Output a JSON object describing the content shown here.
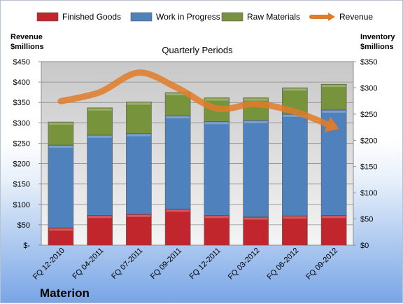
{
  "company": "Materion",
  "chart_data": {
    "type": "bar",
    "stacked": true,
    "title": "Quarterly Periods",
    "categories": [
      "FQ 12-2010",
      "FQ 04-2011",
      "FQ 07-2011",
      "FQ 09-2011",
      "FQ 12-2011",
      "FQ 03-2012",
      "FQ 06-2012",
      "FQ 09-2012"
    ],
    "left_axis": {
      "label_line1": "Revenue",
      "label_line2": "$millions",
      "ylim": [
        0,
        450
      ],
      "ticks": [
        0,
        50,
        100,
        150,
        200,
        250,
        300,
        350,
        400,
        450
      ],
      "tick_labels": [
        "$-",
        "$50",
        "$100",
        "$150",
        "$200",
        "$250",
        "$300",
        "$350",
        "$400",
        "$450"
      ]
    },
    "right_axis": {
      "label_line1": "Inventory",
      "label_line2": "$millions",
      "ylim": [
        0,
        350
      ],
      "ticks": [
        0,
        50,
        100,
        150,
        200,
        250,
        300,
        350
      ],
      "tick_labels": [
        "$0",
        "$50",
        "$100",
        "$150",
        "$200",
        "$250",
        "$300",
        "$350"
      ]
    },
    "series": [
      {
        "name": "Finished Goods",
        "axis": "right",
        "color": "#c0262b",
        "values": [
          33,
          57,
          59,
          69,
          57,
          54,
          56,
          57
        ]
      },
      {
        "name": "Work in Progress",
        "axis": "right",
        "color": "#4f81bd",
        "values": [
          158,
          153,
          154,
          178,
          179,
          184,
          194,
          201
        ]
      },
      {
        "name": "Raw Materials",
        "axis": "right",
        "color": "#77933c",
        "values": [
          44,
          52,
          60,
          44,
          45,
          43,
          50,
          49
        ]
      },
      {
        "name": "Revenue",
        "axis": "left",
        "type": "line",
        "color": "#e07b28",
        "values": [
          353,
          375,
          423,
          385,
          335,
          346,
          327,
          290
        ]
      }
    ],
    "grid": true,
    "legend_position": "top"
  }
}
